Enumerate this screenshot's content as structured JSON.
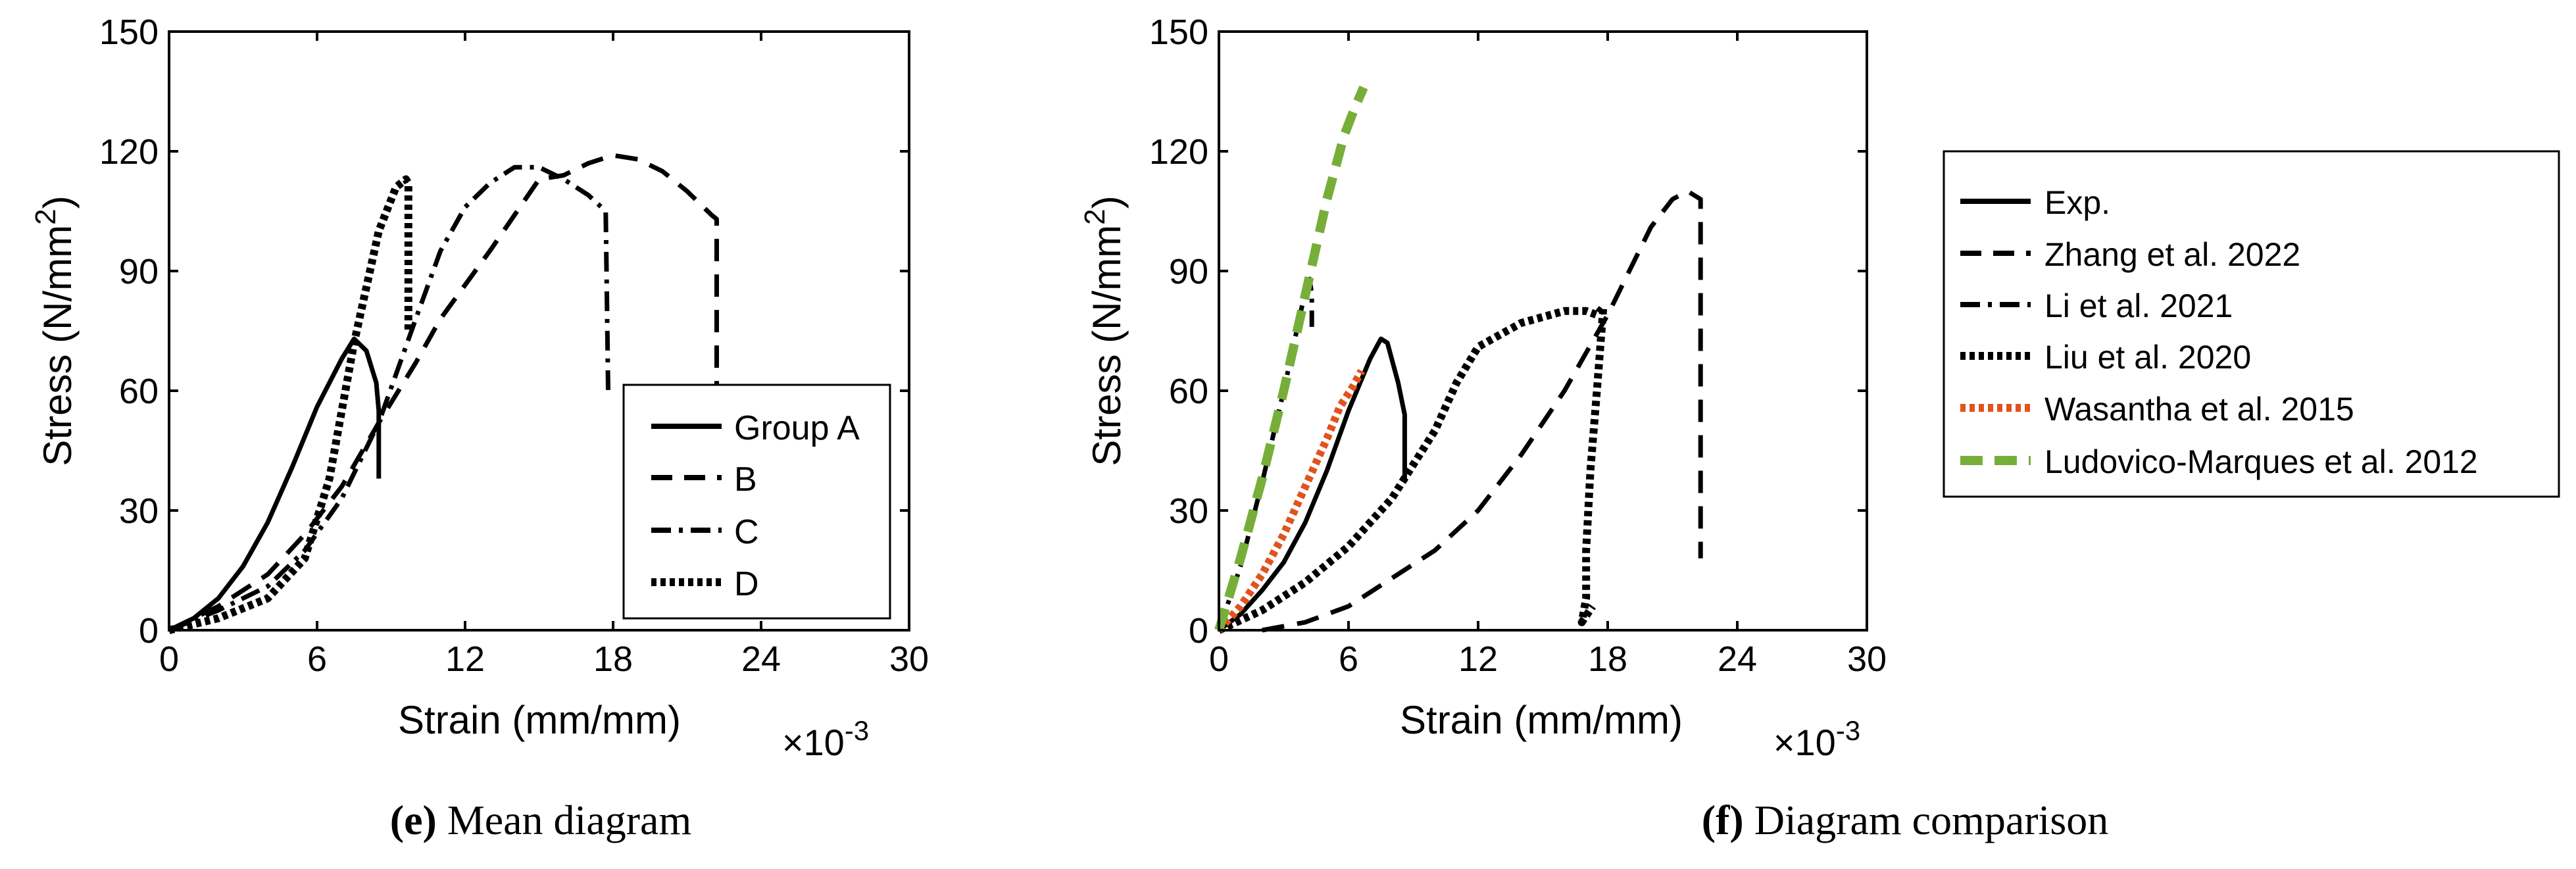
{
  "chart_data": [
    {
      "type": "line",
      "caption_letter": "(e)",
      "caption_text": " Mean diagram",
      "xlabel": "Strain (mm/mm)",
      "ylabel_main": "Stress (N/mm",
      "ylabel_sup": "2",
      "ylabel_close": ")",
      "x_multiplier_base": "×10",
      "x_multiplier_exp": "-3",
      "xlim": [
        0,
        30
      ],
      "ylim": [
        0,
        150
      ],
      "xticks": [
        0,
        6,
        12,
        18,
        24,
        30
      ],
      "yticks": [
        0,
        30,
        60,
        90,
        120,
        150
      ],
      "legend_position": "bottom-right",
      "series": [
        {
          "name": "Group A",
          "style": "solid",
          "color": "#000000",
          "points": [
            [
              0,
              0
            ],
            [
              1,
              3
            ],
            [
              2,
              8
            ],
            [
              3,
              16
            ],
            [
              4,
              27
            ],
            [
              5,
              41
            ],
            [
              6,
              56
            ],
            [
              7,
              68
            ],
            [
              7.5,
              73
            ],
            [
              8,
              70
            ],
            [
              8.4,
              62
            ],
            [
              8.5,
              55
            ],
            [
              8.5,
              38
            ]
          ]
        },
        {
          "name": "B",
          "style": "dash",
          "color": "#000000",
          "points": [
            [
              0,
              0
            ],
            [
              2,
              6
            ],
            [
              4,
              14
            ],
            [
              5.5,
              24
            ],
            [
              7,
              36
            ],
            [
              8.5,
              52
            ],
            [
              10,
              67
            ],
            [
              11,
              78
            ],
            [
              13,
              95
            ],
            [
              15,
              113
            ],
            [
              16,
              114
            ],
            [
              17,
              117
            ],
            [
              18,
              119
            ],
            [
              19,
              118
            ],
            [
              20,
              115
            ],
            [
              21,
              110
            ],
            [
              22,
              104
            ],
            [
              22.2,
              103
            ],
            [
              22.2,
              55
            ]
          ]
        },
        {
          "name": "C",
          "style": "dashdot",
          "color": "#000000",
          "points": [
            [
              0,
              0
            ],
            [
              2,
              5
            ],
            [
              4,
              11
            ],
            [
              5.5,
              20
            ],
            [
              7,
              33
            ],
            [
              8.5,
              52
            ],
            [
              10,
              78
            ],
            [
              11,
              95
            ],
            [
              12,
              106
            ],
            [
              13,
              112
            ],
            [
              14,
              116
            ],
            [
              15,
              116
            ],
            [
              16,
              113
            ],
            [
              17,
              109
            ],
            [
              17.7,
              105
            ],
            [
              17.8,
              60
            ]
          ]
        },
        {
          "name": "D",
          "style": "dot",
          "color": "#000000",
          "points": [
            [
              0,
              0
            ],
            [
              2,
              3
            ],
            [
              4,
              8
            ],
            [
              5.5,
              18
            ],
            [
              6.5,
              38
            ],
            [
              7.5,
              72
            ],
            [
              8.5,
              100
            ],
            [
              9.2,
              111
            ],
            [
              9.6,
              113
            ],
            [
              9.7,
              112
            ],
            [
              9.7,
              75
            ]
          ]
        }
      ]
    },
    {
      "type": "line",
      "caption_letter": "(f)",
      "caption_text": " Diagram comparison",
      "xlabel": "Strain (mm/mm)",
      "ylabel_main": "Stress (N/mm",
      "ylabel_sup": "2",
      "ylabel_close": ")",
      "x_multiplier_base": "×10",
      "x_multiplier_exp": "-3",
      "xlim": [
        0,
        30
      ],
      "ylim": [
        0,
        150
      ],
      "xticks": [
        0,
        6,
        12,
        18,
        24,
        30
      ],
      "yticks": [
        0,
        30,
        60,
        90,
        120,
        150
      ],
      "legend_position": "outside-right",
      "series": [
        {
          "name": "Exp.",
          "style": "solid",
          "color": "#000000",
          "points": [
            [
              0,
              0
            ],
            [
              1,
              4
            ],
            [
              2,
              10
            ],
            [
              3,
              17
            ],
            [
              4,
              27
            ],
            [
              5,
              40
            ],
            [
              6,
              55
            ],
            [
              7,
              68
            ],
            [
              7.5,
              73
            ],
            [
              7.8,
              72
            ],
            [
              8.3,
              62
            ],
            [
              8.6,
              54
            ],
            [
              8.6,
              38
            ]
          ]
        },
        {
          "name": "Zhang et al. 2022",
          "style": "dash",
          "color": "#000000",
          "points": [
            [
              2,
              0
            ],
            [
              4,
              2
            ],
            [
              6,
              6
            ],
            [
              8,
              13
            ],
            [
              10,
              20
            ],
            [
              12,
              30
            ],
            [
              14,
              44
            ],
            [
              16,
              60
            ],
            [
              18,
              79
            ],
            [
              19,
              90
            ],
            [
              20,
              101
            ],
            [
              21,
              108
            ],
            [
              21.7,
              110
            ],
            [
              22.3,
              108
            ],
            [
              22.3,
              18
            ]
          ]
        },
        {
          "name": "Li et al. 2021",
          "style": "dashdot",
          "color": "#000000",
          "points": [
            [
              0,
              0
            ],
            [
              1,
              16
            ],
            [
              2,
              37
            ],
            [
              3,
              60
            ],
            [
              4,
              85
            ],
            [
              4.2,
              88
            ],
            [
              4.3,
              84
            ],
            [
              4.3,
              76
            ]
          ]
        },
        {
          "name": "Liu et al. 2020",
          "style": "dot",
          "color": "#000000",
          "points": [
            [
              0,
              0
            ],
            [
              2,
              5
            ],
            [
              4,
              12
            ],
            [
              6,
              21
            ],
            [
              8,
              33
            ],
            [
              10,
              50
            ],
            [
              11,
              62
            ],
            [
              12,
              71
            ],
            [
              13,
              74
            ],
            [
              14,
              77
            ],
            [
              16,
              80
            ],
            [
              17,
              80
            ],
            [
              17.5,
              79
            ],
            [
              17.8,
              81
            ],
            [
              17.5,
              60
            ],
            [
              17.2,
              40
            ],
            [
              17,
              20
            ],
            [
              17,
              8
            ],
            [
              16.8,
              2
            ],
            [
              17.3,
              6
            ]
          ]
        },
        {
          "name": "Wasantha et al. 2015",
          "style": "dot",
          "color": "#E0531E",
          "points": [
            [
              0,
              0
            ],
            [
              1,
              6
            ],
            [
              2,
              14
            ],
            [
              3,
              24
            ],
            [
              4,
              36
            ],
            [
              5,
              48
            ],
            [
              5.6,
              56
            ],
            [
              6.2,
              61
            ],
            [
              6.6,
              65
            ]
          ]
        },
        {
          "name": "Ludovico-Marques et al. 2012",
          "style": "dash",
          "color": "#77AE3A",
          "points": [
            [
              0,
              0
            ],
            [
              1,
              18
            ],
            [
              2,
              38
            ],
            [
              3,
              60
            ],
            [
              4,
              84
            ],
            [
              5,
              108
            ],
            [
              5.8,
              124
            ],
            [
              6.3,
              131
            ],
            [
              6.7,
              136
            ]
          ]
        }
      ]
    }
  ]
}
